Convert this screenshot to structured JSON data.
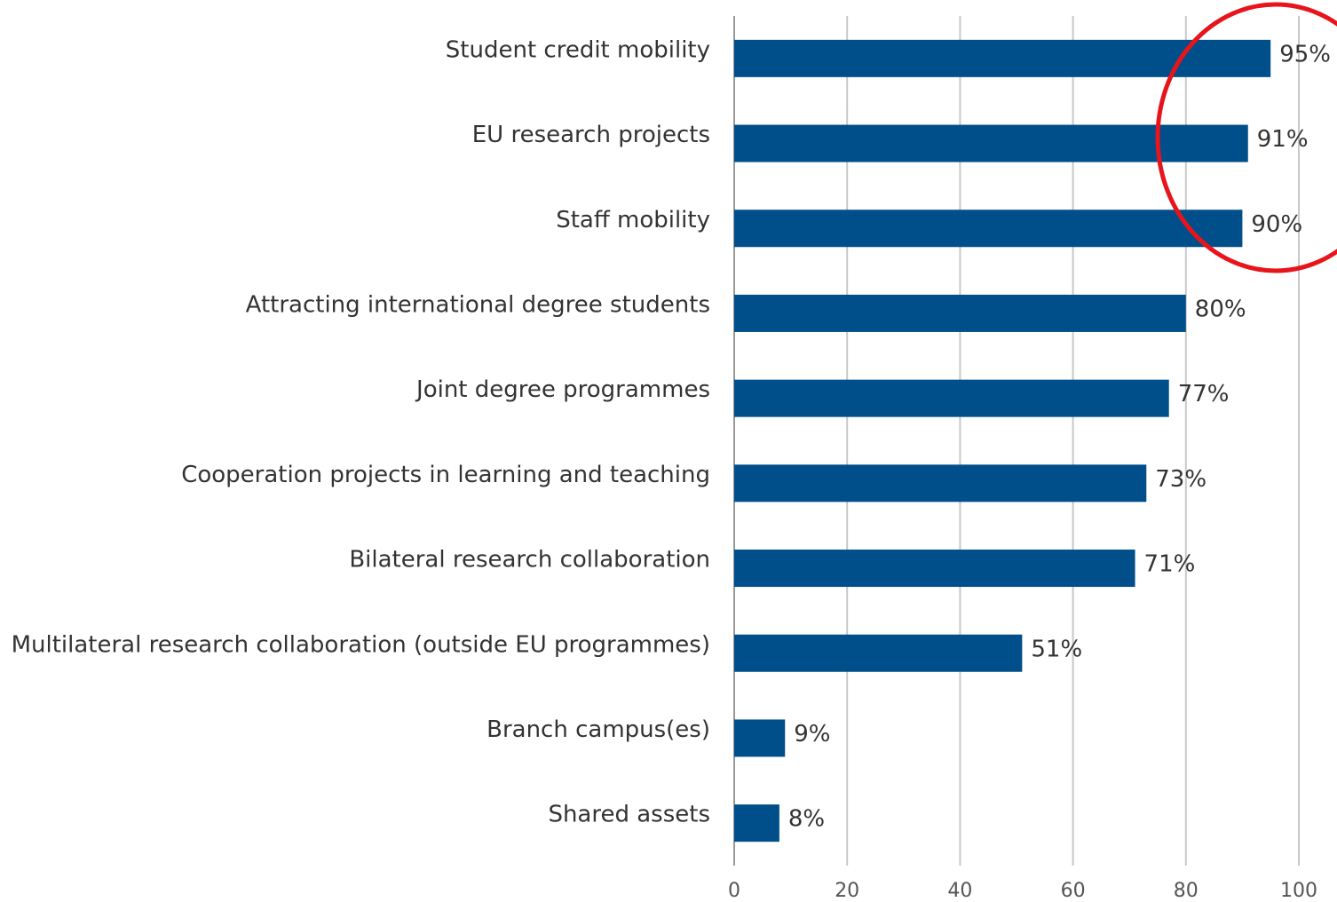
{
  "chart_data": {
    "type": "bar",
    "orientation": "horizontal",
    "categories": [
      "Student credit mobility",
      "EU research projects",
      "Staff mobility",
      "Attracting international degree students",
      "Joint degree programmes",
      "Cooperation projects in learning and teaching",
      "Bilateral research collaboration",
      "Multilateral research collaboration (outside EU programmes)",
      "Branch campus(es)",
      "Shared assets"
    ],
    "values": [
      95,
      91,
      90,
      80,
      77,
      73,
      71,
      51,
      9,
      8
    ],
    "value_labels": [
      "95%",
      "91%",
      "90%",
      "80%",
      "77%",
      "73%",
      "71%",
      "51%",
      "9%",
      "8%"
    ],
    "color": "#004f8a",
    "xlim": [
      0,
      100
    ],
    "xticks": [
      0,
      20,
      40,
      60,
      80,
      100
    ],
    "grid": true
  }
}
